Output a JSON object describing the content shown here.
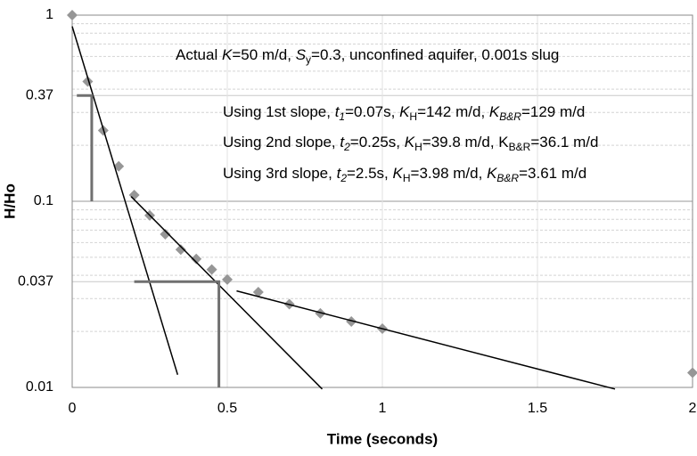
{
  "chart_data": {
    "type": "scatter",
    "x_label": "Time (seconds)",
    "y_label": "H/Ho",
    "xlim": [
      0,
      2
    ],
    "xticks": [
      0,
      0.5,
      1,
      1.5,
      2
    ],
    "ylim": [
      0.01,
      1
    ],
    "yticks": [
      1,
      0.37,
      0.1,
      0.037,
      0.01
    ],
    "log_y": true,
    "grid": true,
    "minor_grid": true,
    "series": [
      {
        "kind": "scatter",
        "color": "#969696",
        "x": [
          0,
          0.05,
          0.1,
          0.15,
          0.2,
          0.25,
          0.3,
          0.35,
          0.4,
          0.45,
          0.5,
          0.6,
          0.7,
          0.8,
          0.9,
          1.0,
          2.0
        ],
        "values": [
          1,
          0.44,
          0.24,
          0.154,
          0.108,
          0.084,
          0.0665,
          0.055,
          0.049,
          0.043,
          0.038,
          0.0325,
          0.028,
          0.025,
          0.0226,
          0.0207,
          0.012
        ]
      },
      {
        "kind": "line",
        "color": "#000000",
        "width": 1.5,
        "x": [
          0,
          0.34
        ],
        "values": [
          0.87,
          0.0117
        ]
      },
      {
        "kind": "line",
        "color": "#000000",
        "width": 1.5,
        "x": [
          0.19,
          0.806
        ],
        "values": [
          0.106,
          0.0098
        ]
      },
      {
        "kind": "line",
        "color": "#000000",
        "width": 1.5,
        "x": [
          0.53,
          1.75
        ],
        "values": [
          0.033,
          0.0098
        ]
      },
      {
        "kind": "line",
        "color": "#707070",
        "width": 3,
        "x": [
          0.015,
          0.063,
          0.063
        ],
        "values": [
          0.37,
          0.37,
          0.1
        ]
      },
      {
        "kind": "line",
        "color": "#707070",
        "width": 3,
        "x": [
          0.2,
          0.473,
          0.473
        ],
        "values": [
          0.037,
          0.037,
          0.01
        ]
      }
    ],
    "annotations": [
      [
        {
          "text": "Actual "
        },
        {
          "text": "K",
          "style": "italic"
        },
        {
          "text": "=50 m/d, "
        },
        {
          "text": "S",
          "style": "italic"
        },
        {
          "text": "y",
          "style": "sub"
        },
        {
          "text": "=0.3, unconfined aquifer, 0.001s slug"
        }
      ],
      [
        {
          "text": "Using 1st slope, "
        },
        {
          "text": "t",
          "style": "italic"
        },
        {
          "text": "1",
          "style": "italic-sub"
        },
        {
          "text": "=0.07s, "
        },
        {
          "text": "K",
          "style": "italic"
        },
        {
          "text": "H",
          "style": "sub"
        },
        {
          "text": "=142 m/d, "
        },
        {
          "text": "K",
          "style": "italic"
        },
        {
          "text": "B&R",
          "style": "italic-sub"
        },
        {
          "text": "=129 m/d"
        }
      ],
      [
        {
          "text": "Using 2nd slope, "
        },
        {
          "text": "t",
          "style": "italic"
        },
        {
          "text": "2",
          "style": "italic-sub"
        },
        {
          "text": "=0.25s, "
        },
        {
          "text": "K",
          "style": "italic"
        },
        {
          "text": "H",
          "style": "sub"
        },
        {
          "text": "=39.8 m/d, K"
        },
        {
          "text": "B&R",
          "style": "sub"
        },
        {
          "text": "=36.1 m/d"
        }
      ],
      [
        {
          "text": "Using 3rd slope, "
        },
        {
          "text": "t",
          "style": "italic"
        },
        {
          "text": "2",
          "style": "italic-sub"
        },
        {
          "text": "=2.5s, "
        },
        {
          "text": "K",
          "style": "italic"
        },
        {
          "text": "H",
          "style": "sub"
        },
        {
          "text": "=3.98 m/d, "
        },
        {
          "text": "K",
          "style": "italic"
        },
        {
          "text": "B&R",
          "style": "italic-sub"
        },
        {
          "text": "=3.61 m/d"
        }
      ]
    ]
  }
}
